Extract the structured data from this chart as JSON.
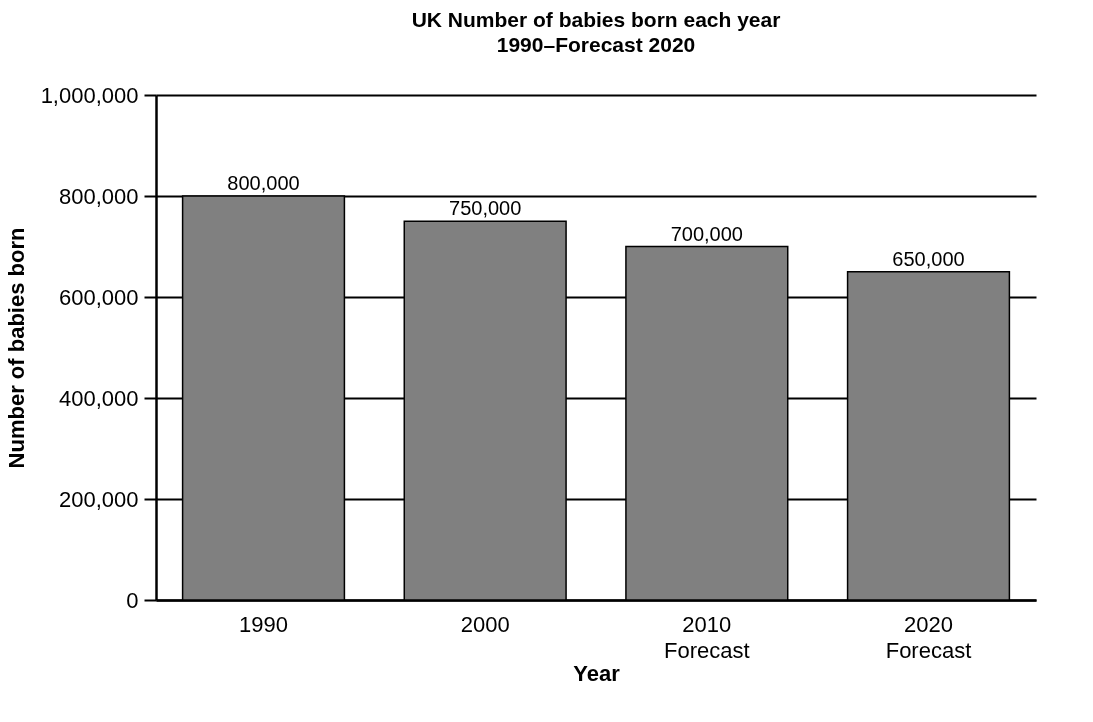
{
  "chart_data": {
    "type": "bar",
    "title": "UK Number of  babies born each year",
    "subtitle": "1990–Forecast 2020",
    "xlabel": "Year",
    "ylabel": "Number of babies born",
    "categories": [
      "1990",
      "2000",
      "2010\nForecast",
      "2020\nForecast"
    ],
    "values": [
      800000,
      750000,
      700000,
      650000
    ],
    "color": "#808080",
    "value_labels": [
      "800,000",
      "750,000",
      "700,000",
      "650,000"
    ],
    "ylim": [
      0,
      1000000
    ],
    "yticks": [
      0,
      {
        "value": 200000,
        "label": "200,000"
      },
      {
        "value": 400000,
        "label": "400,000"
      },
      {
        "value": 600000,
        "label": "600,000"
      },
      {
        "value": 800000,
        "label": "800,000"
      },
      {
        "value": 1000000,
        "label": "1,000,000"
      }
    ],
    "grid": "y"
  }
}
